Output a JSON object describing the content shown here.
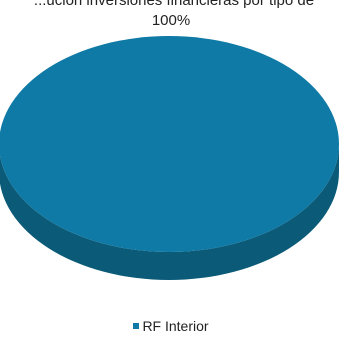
{
  "chart_data": {
    "type": "pie",
    "title": "...ución inversiones financieras por tipo de",
    "categories": [
      "RF Interior"
    ],
    "values": [
      100
    ],
    "data_labels": [
      "100%"
    ],
    "legend": {
      "entries": [
        "RF Interior"
      ],
      "placement": "bottom"
    },
    "colors": {
      "slice_top": "#0f7aa5",
      "slice_side": "#0a5a78"
    },
    "style": "3d"
  }
}
